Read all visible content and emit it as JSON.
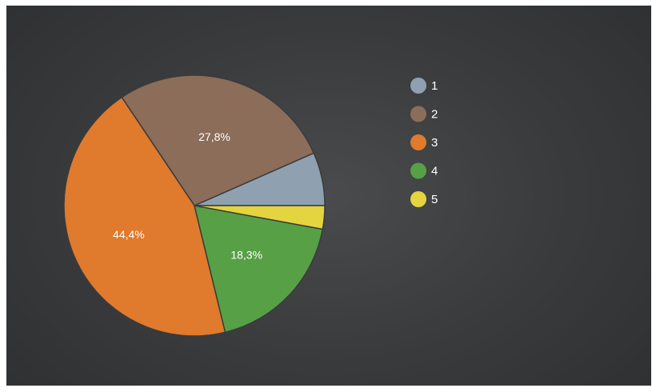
{
  "chart_data": {
    "type": "pie",
    "categories": [
      "1",
      "2",
      "3",
      "4",
      "5"
    ],
    "values": [
      6.6,
      27.8,
      44.4,
      18.3,
      2.9
    ],
    "data_labels": [
      "",
      "27,8%",
      "44,4%",
      "18,3%",
      ""
    ],
    "colors": [
      "#8fa1b0",
      "#8b6d5a",
      "#e07a2c",
      "#57a046",
      "#e3d440"
    ],
    "start_angle_deg": 0,
    "direction": "counterclockwise",
    "legend_position": "right",
    "background": "#3a3b3d"
  }
}
